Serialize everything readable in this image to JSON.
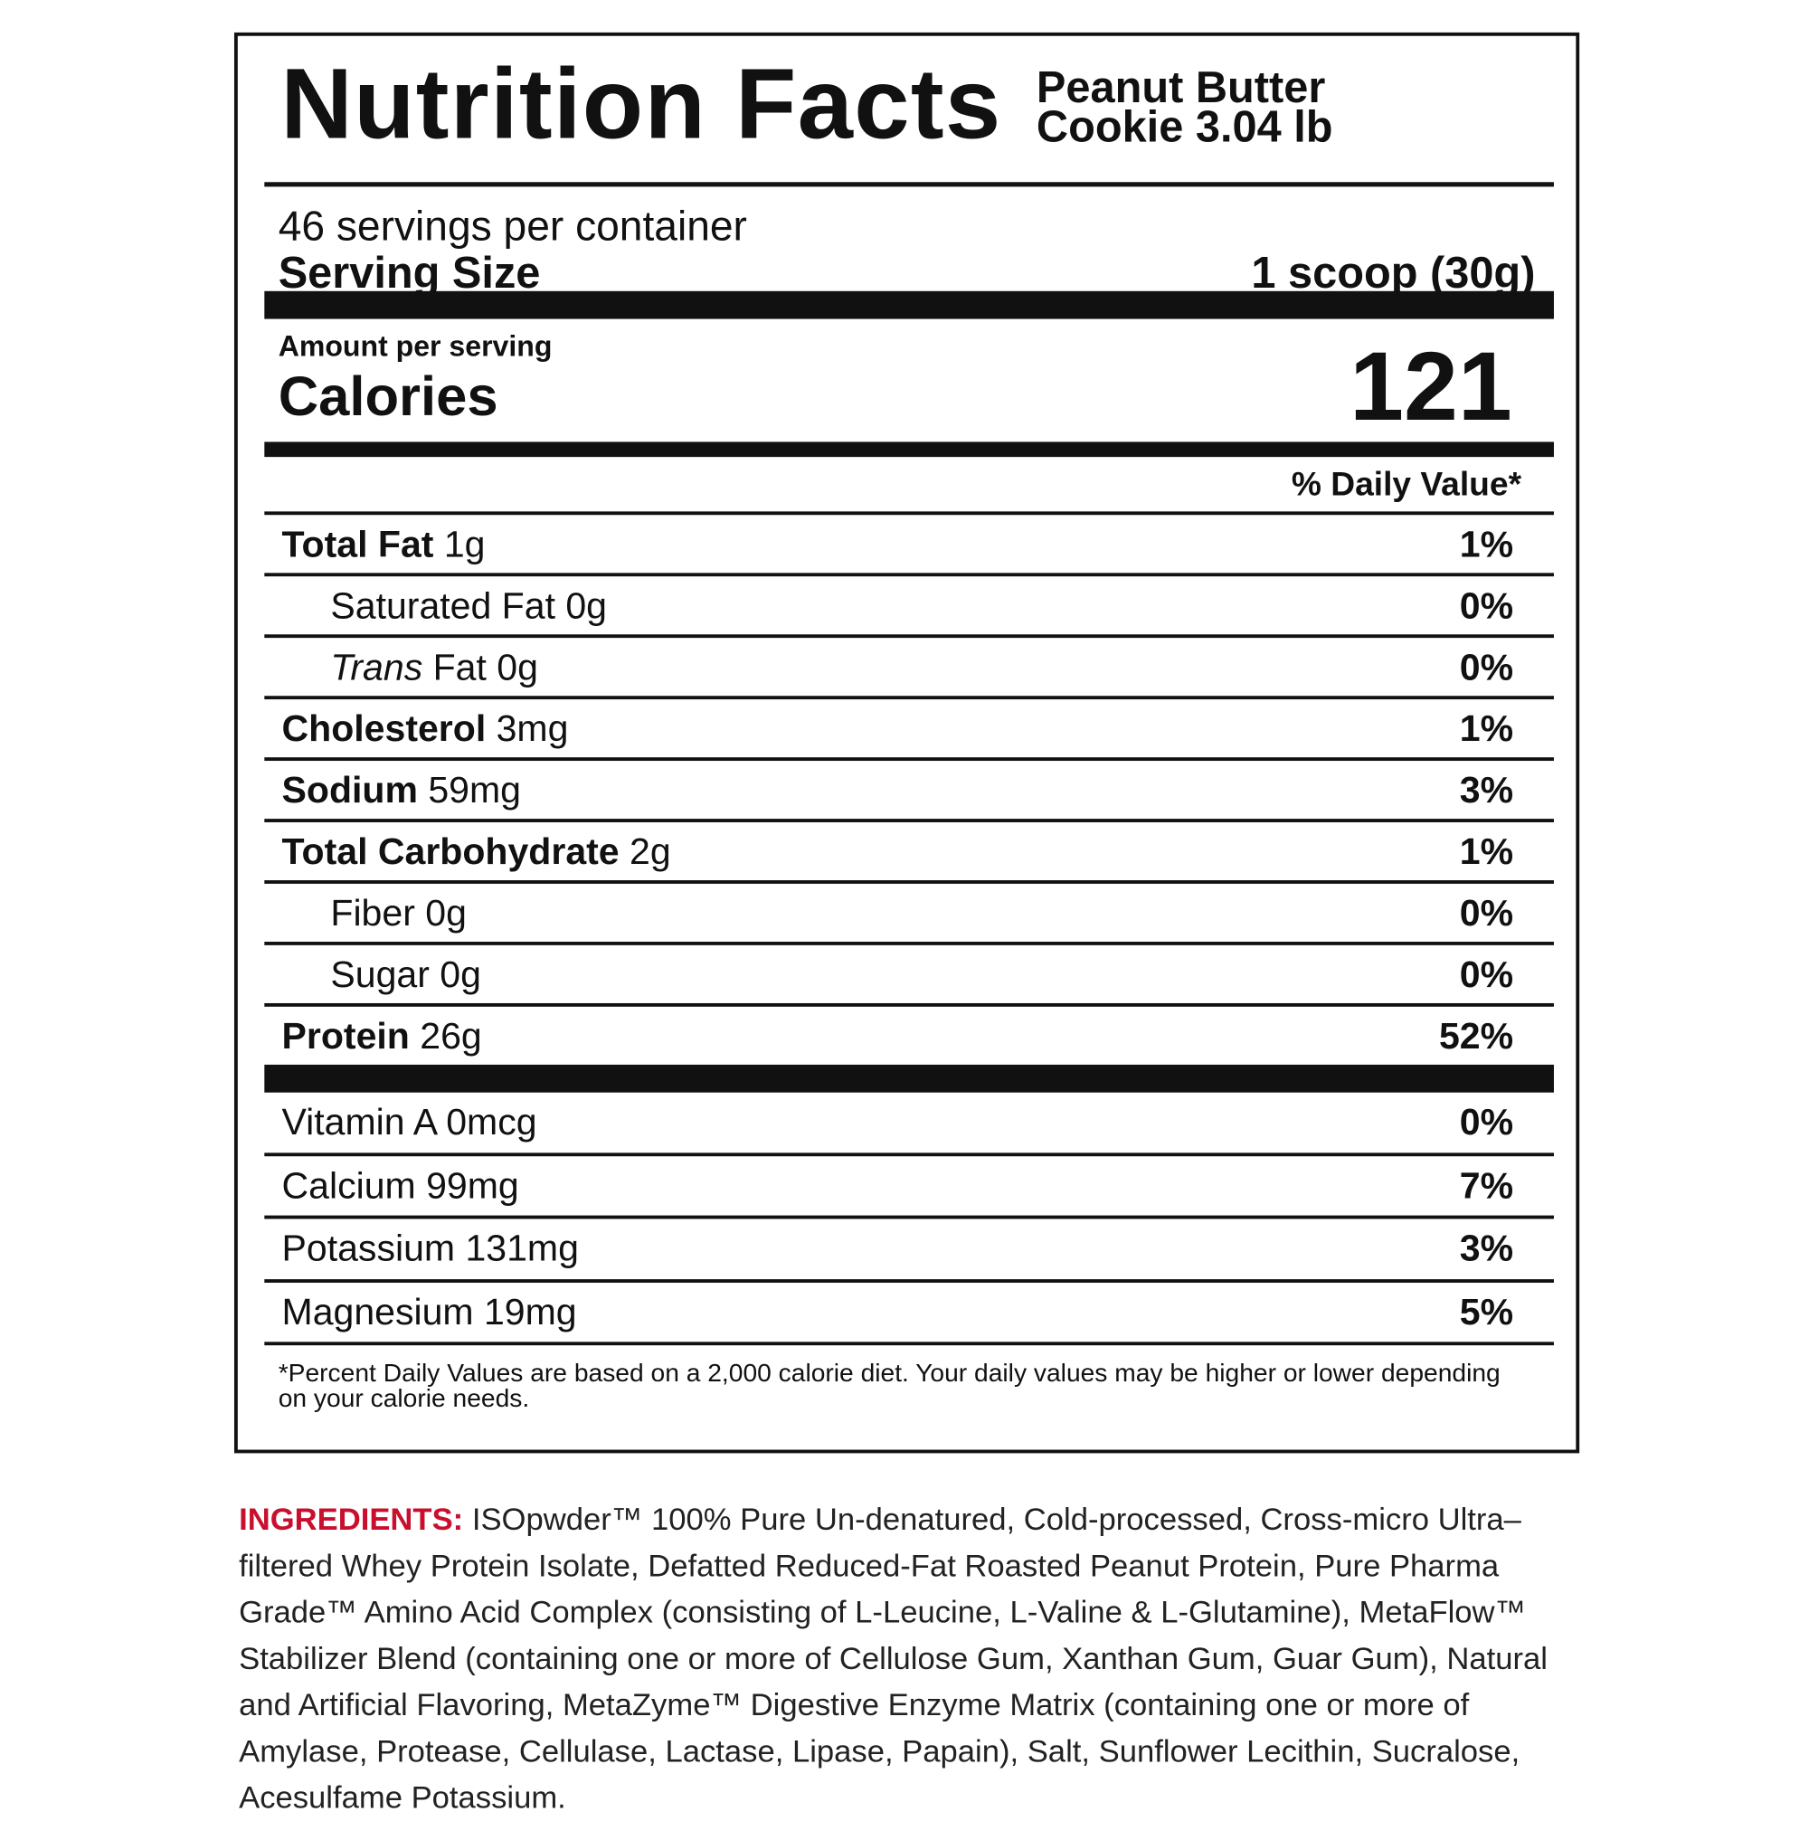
{
  "header": {
    "title": "Nutrition Facts",
    "product_line1": "Peanut Butter",
    "product_line2": "Cookie 3.04 lb"
  },
  "servings_per_container": "46 servings per container",
  "serving_size": {
    "label": "Serving Size",
    "value": "1 scoop (30g)"
  },
  "amount_per_serving": "Amount per serving",
  "calories": {
    "label": "Calories",
    "value": 121
  },
  "daily_value_header": "% Daily Value*",
  "nutrients": [
    {
      "name": "Total Fat",
      "amount": "1g",
      "dv": "1%",
      "bold": true,
      "indent": false
    },
    {
      "name": "Saturated Fat",
      "amount": "0g",
      "dv": "0%",
      "bold": false,
      "indent": true
    },
    {
      "italic_prefix": "Trans",
      "name": "Fat",
      "amount": "0g",
      "dv": "0%",
      "bold": false,
      "indent": true
    },
    {
      "name": "Cholesterol",
      "amount": "3mg",
      "dv": "1%",
      "bold": true,
      "indent": false
    },
    {
      "name": "Sodium",
      "amount": "59mg",
      "dv": "3%",
      "bold": true,
      "indent": false
    },
    {
      "name": "Total Carbohydrate",
      "amount": "2g",
      "dv": "1%",
      "bold": true,
      "indent": false
    },
    {
      "name": "Fiber",
      "amount": "0g",
      "dv": "0%",
      "bold": false,
      "indent": true
    },
    {
      "name": "Sugar",
      "amount": "0g",
      "dv": "0%",
      "bold": false,
      "indent": true
    },
    {
      "name": "Protein",
      "amount": "26g",
      "dv": "52%",
      "bold": true,
      "indent": false
    }
  ],
  "vitamins": [
    {
      "name": "Vitamin A",
      "amount": "0mcg",
      "dv": "0%"
    },
    {
      "name": "Calcium",
      "amount": "99mg",
      "dv": "7%"
    },
    {
      "name": "Potassium",
      "amount": "131mg",
      "dv": "3%"
    },
    {
      "name": "Magnesium",
      "amount": "19mg",
      "dv": "5%"
    }
  ],
  "footnote": "*Percent Daily Values are based on a 2,000 calorie diet. Your daily values may be higher or lower depending on your calorie needs.",
  "ingredients": {
    "label": "INGREDIENTS:",
    "text": "ISOpwder™ 100% Pure Un-denatured, Cold-processed, Cross-micro Ultra–filtered Whey Protein Isolate, Defatted Reduced-Fat Roasted Peanut Protein, Pure Pharma Grade™ Amino Acid Complex (consisting of L-Leucine, L-Valine & L-Glutamine), MetaFlow™ Stabilizer Blend (containing one or more of Cellulose Gum, Xanthan Gum, Guar Gum), Natural and Artificial Flavoring, MetaZyme™ Digestive Enzyme Matrix (containing one or more of Amylase, Protease, Cellulase, Lactase, Lipase, Papain), Salt, Sunflower Lecithin, Sucralose, Acesulfame Potassium."
  }
}
